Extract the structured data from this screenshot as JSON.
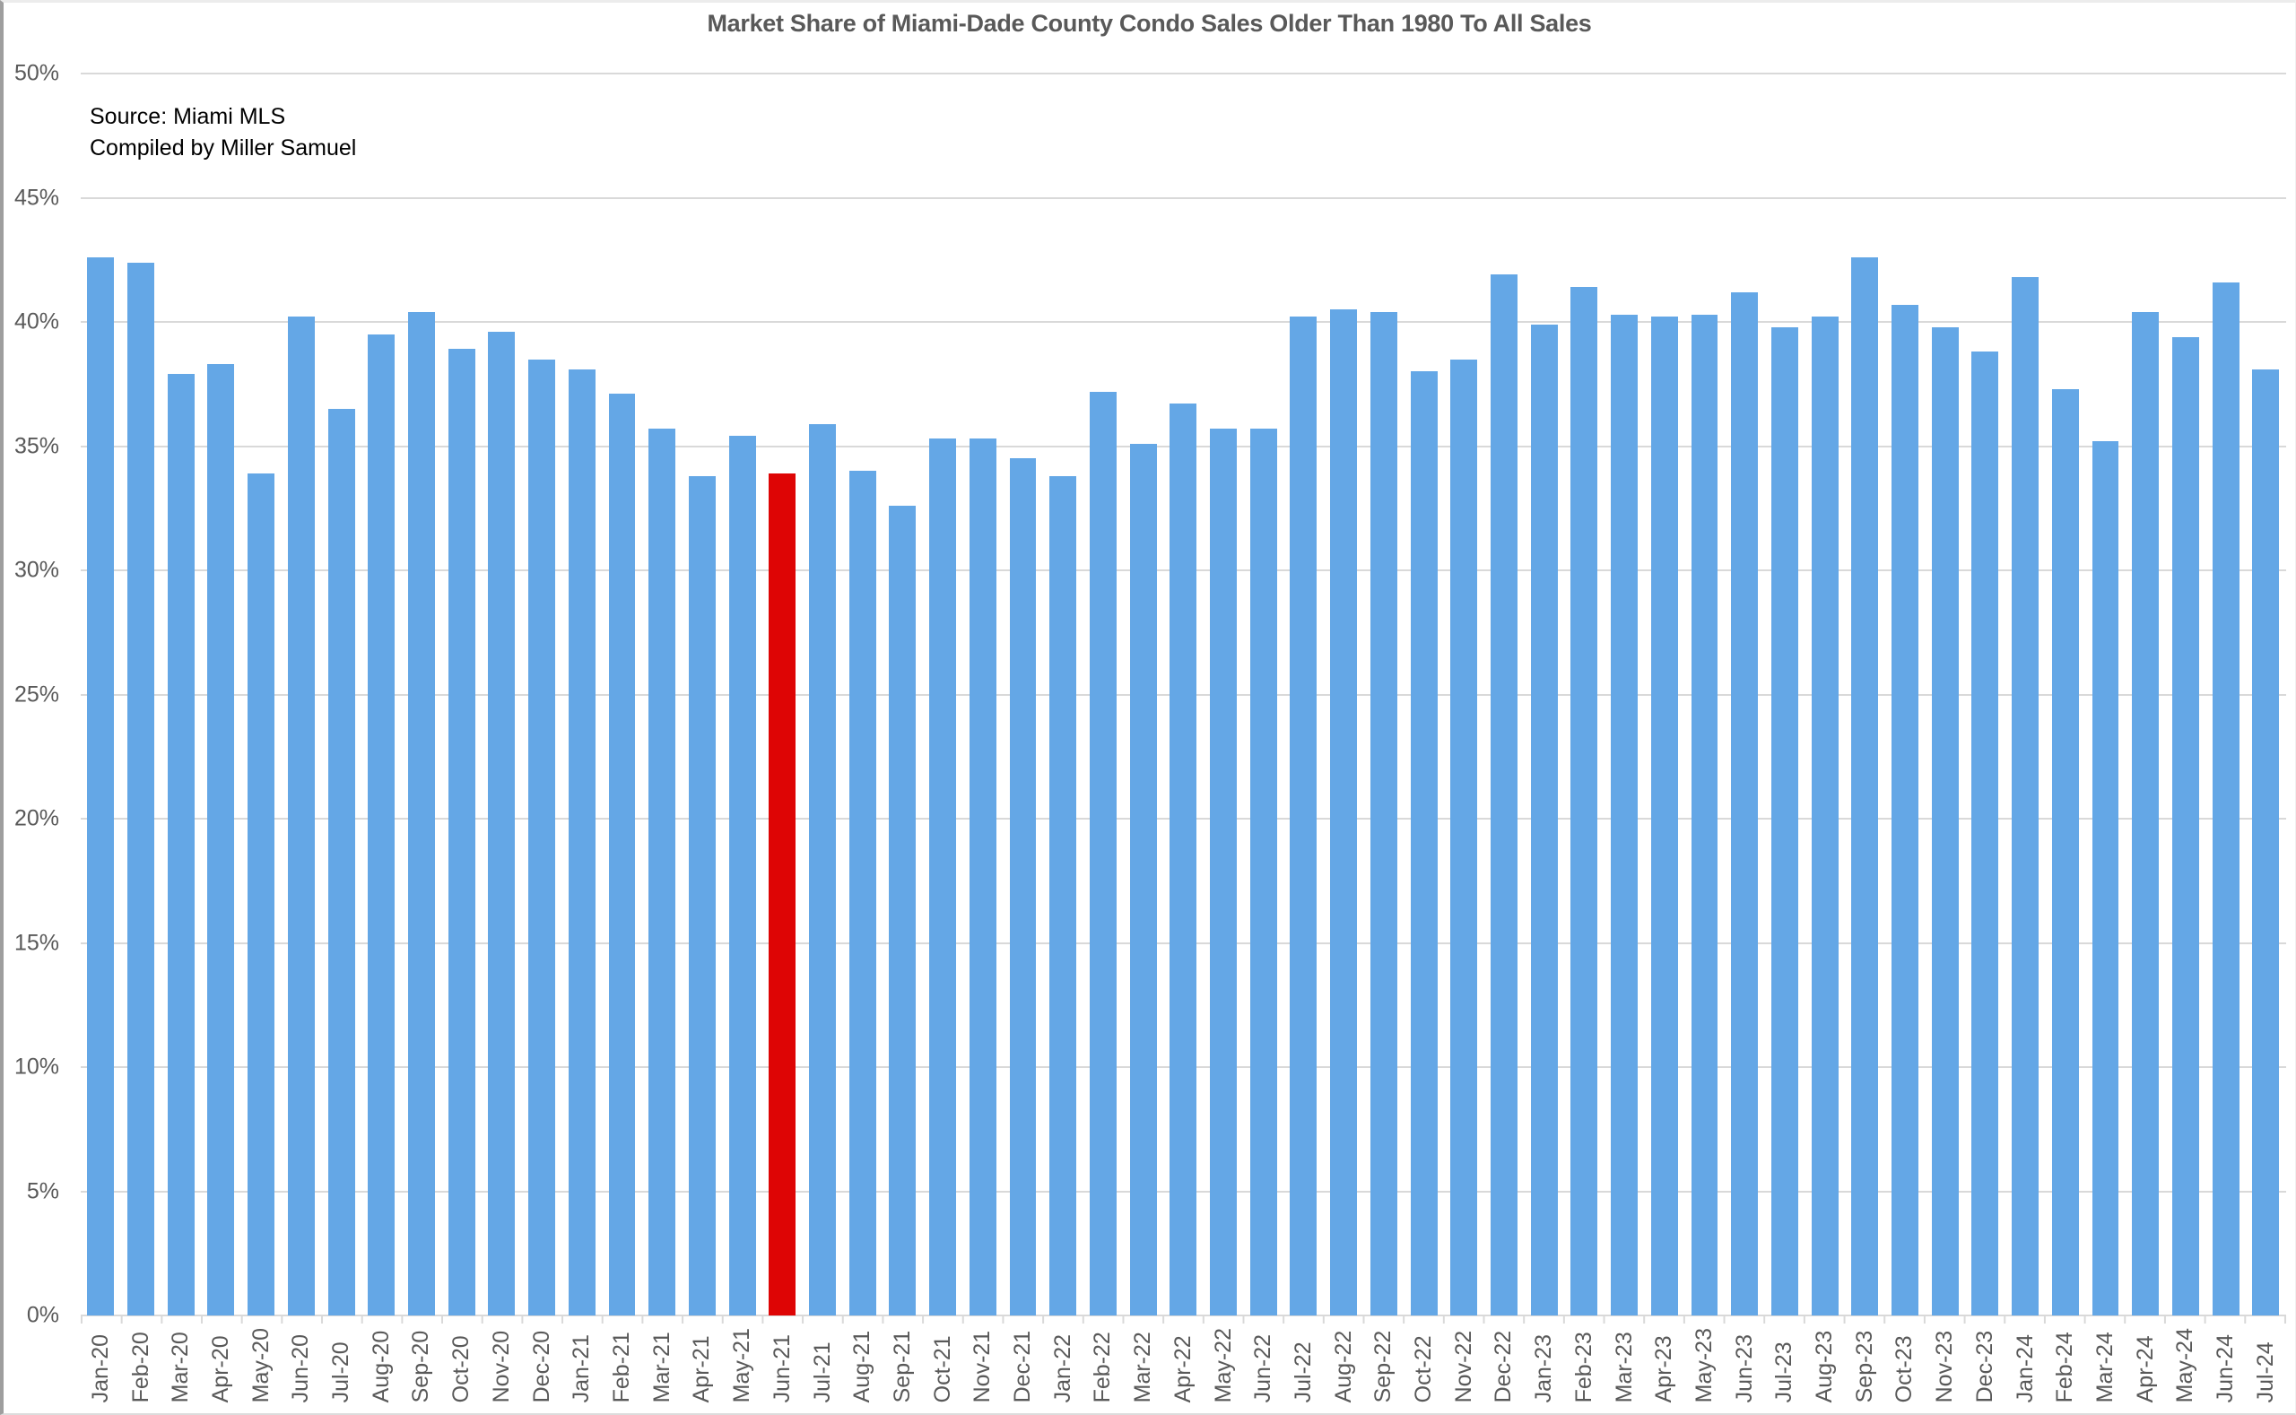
{
  "title": "Market Share of Miami-Dade County Condo Sales Older Than 1980 To All Sales",
  "source_note": {
    "line1": "Source: Miami MLS",
    "line2": "Compiled by Miller Samuel"
  },
  "colors": {
    "bar": "#64A7E6",
    "highlight": "#DE0505",
    "grid": "#D9D9D9",
    "axis_text": "#595959",
    "title_text": "#595959"
  },
  "chart_data": {
    "type": "bar",
    "title": "Market Share of Miami-Dade County Condo Sales Older Than 1980 To All Sales",
    "xlabel": "",
    "ylabel": "",
    "ylim": [
      0,
      50
    ],
    "y_axis": {
      "min": 0,
      "max": 50,
      "step": 5,
      "tick_suffix": "%"
    },
    "grid": "horizontal",
    "legend": "none",
    "categories": [
      "Jan-20",
      "Feb-20",
      "Mar-20",
      "Apr-20",
      "May-20",
      "Jun-20",
      "Jul-20",
      "Aug-20",
      "Sep-20",
      "Oct-20",
      "Nov-20",
      "Dec-20",
      "Jan-21",
      "Feb-21",
      "Mar-21",
      "Apr-21",
      "May-21",
      "Jun-21",
      "Jul-21",
      "Aug-21",
      "Sep-21",
      "Oct-21",
      "Nov-21",
      "Dec-21",
      "Jan-22",
      "Feb-22",
      "Mar-22",
      "Apr-22",
      "May-22",
      "Jun-22",
      "Jul-22",
      "Aug-22",
      "Sep-22",
      "Oct-22",
      "Nov-22",
      "Dec-22",
      "Jan-23",
      "Feb-23",
      "Mar-23",
      "Apr-23",
      "May-23",
      "Jun-23",
      "Jul-23",
      "Aug-23",
      "Sep-23",
      "Oct-23",
      "Nov-23",
      "Dec-23",
      "Jan-24",
      "Feb-24",
      "Mar-24",
      "Apr-24",
      "May-24",
      "Jun-24",
      "Jul-24"
    ],
    "values": [
      42.6,
      42.4,
      37.9,
      38.3,
      33.9,
      40.2,
      36.5,
      39.5,
      40.4,
      38.9,
      39.6,
      38.5,
      38.1,
      37.1,
      35.7,
      33.8,
      35.4,
      33.9,
      35.9,
      34.0,
      32.6,
      35.3,
      35.3,
      34.5,
      33.8,
      37.2,
      35.1,
      36.7,
      35.7,
      35.7,
      40.2,
      40.5,
      40.4,
      38.0,
      38.5,
      41.9,
      39.9,
      41.4,
      40.3,
      40.2,
      40.3,
      41.2,
      39.8,
      40.2,
      42.6,
      40.7,
      39.8,
      38.8,
      41.8,
      37.3,
      35.2,
      40.4,
      39.4,
      41.6,
      38.1
    ],
    "highlight_index": 17,
    "highlight_category": "Jun-21"
  }
}
